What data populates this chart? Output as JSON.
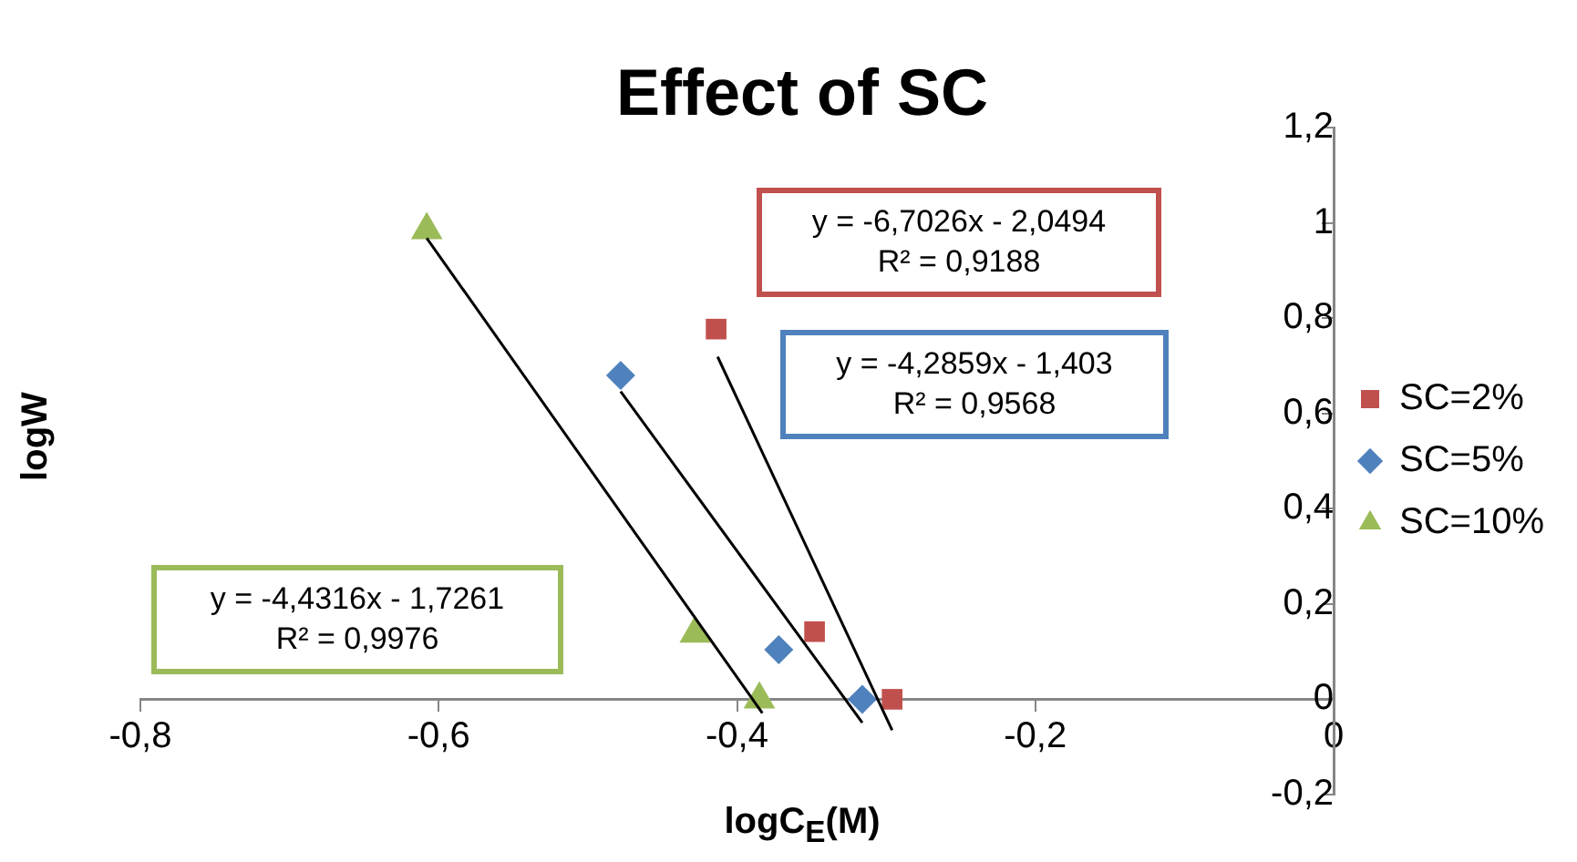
{
  "chart_data": {
    "type": "scatter",
    "title": "Effect of SC",
    "xlabel": "logC$_{E}$(M)",
    "ylabel": "logW",
    "xlim": [
      -0.8,
      0
    ],
    "xticks": [
      {
        "value": -0.8,
        "label": "-0,8"
      },
      {
        "value": -0.6,
        "label": "-0,6"
      },
      {
        "value": -0.4,
        "label": "-0,4"
      },
      {
        "value": -0.2,
        "label": "-0,2"
      },
      0
    ],
    "ylim": [
      -0.2,
      1.2
    ],
    "yticks": [
      {
        "value": -0.2,
        "label": "-0,2"
      },
      0,
      {
        "value": 0.2,
        "label": "0,2"
      },
      {
        "value": 0.4,
        "label": "0,4"
      },
      {
        "value": 0.6,
        "label": "0,6"
      },
      {
        "value": 0.8,
        "label": "0,8"
      },
      1,
      {
        "value": 1.2,
        "label": "1,2"
      }
    ],
    "legend": "right",
    "grid": false,
    "series": [
      {
        "name": "SC=2%",
        "color": "#c0504d",
        "marker": "square",
        "x": [
          -0.414,
          -0.348,
          -0.296
        ],
        "values": [
          0.777,
          0.142,
          0
        ]
      },
      {
        "name": "SC=5%",
        "color": "#4f81bd",
        "marker": "diamond",
        "x": [
          -0.478,
          -0.372,
          -0.316
        ],
        "values": [
          0.68,
          0.104,
          0
        ]
      },
      {
        "name": "SC=10%",
        "color": "#9bbb59",
        "marker": "triangle",
        "x": [
          -0.608,
          -0.428,
          -0.385
        ],
        "values": [
          0.985,
          0.138,
          0
        ]
      },
      {
        "type": "line",
        "color": "#000000",
        "marker": "none",
        "x": [
          -0.413,
          -0.296
        ],
        "values": [
          0.719,
          -0.065
        ]
      },
      {
        "type": "line",
        "color": "#000000",
        "marker": "none",
        "x": [
          -0.478,
          -0.316
        ],
        "values": [
          0.646,
          -0.049
        ]
      },
      {
        "type": "line",
        "color": "#000000",
        "marker": "none",
        "x": [
          -0.608,
          -0.383
        ],
        "values": [
          0.968,
          -0.029
        ]
      }
    ],
    "annotations": [
      "y = -6,7026x - 2,0494\nR² = 0,9188",
      "y = -4,2859x - 1,403\nR² = 0,9568",
      "y = -4,4316x - 1,7261\nR² = 0,9976"
    ]
  }
}
